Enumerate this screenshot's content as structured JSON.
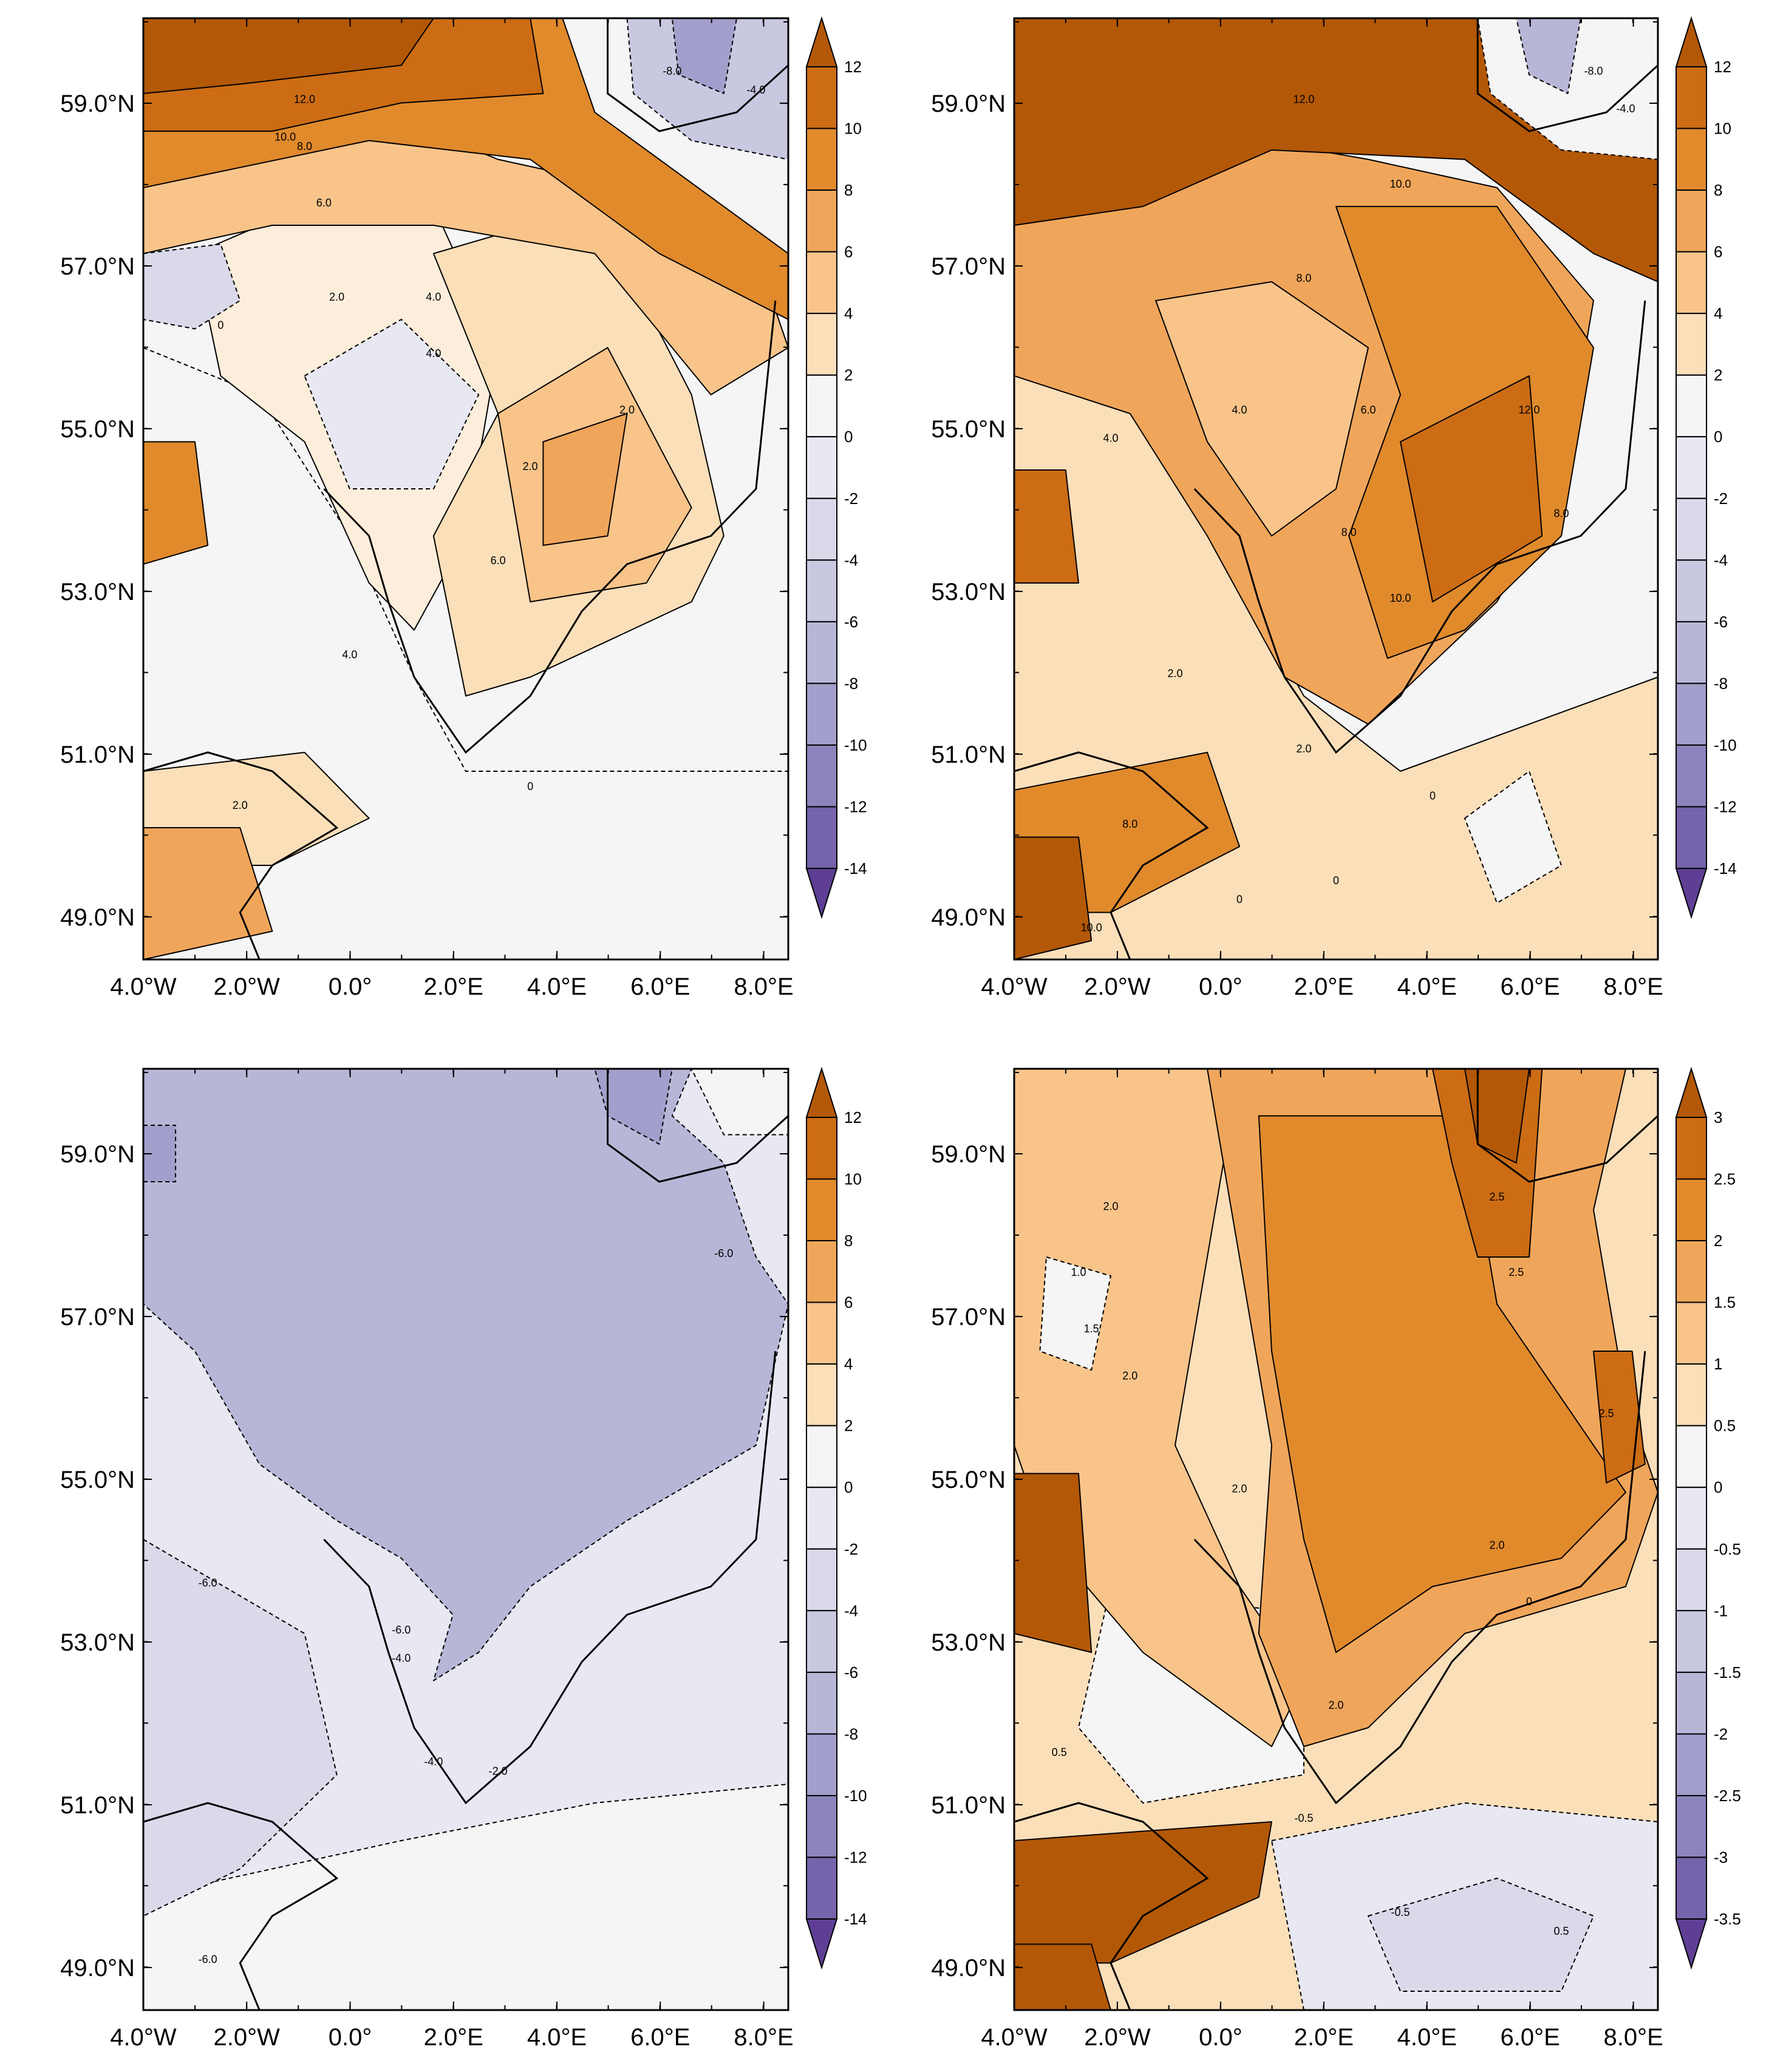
{
  "figure": {
    "description_hint": "Four-panel map figure of the North Sea region",
    "panels": [
      {
        "id": "top-left",
        "x_ticks": [
          "4.0°W",
          "2.0°W",
          "0.0°",
          "2.0°E",
          "4.0°E",
          "6.0°E",
          "8.0°E"
        ],
        "y_ticks": [
          "59.0°N",
          "57.0°N",
          "55.0°N",
          "53.0°N",
          "51.0°N",
          "49.0°N"
        ],
        "contour_labels": [
          "12.0",
          "10.0",
          "8.0",
          "6.0",
          "4.0",
          "2.0",
          "2.0",
          "4.0",
          "6.0",
          "4.0",
          "2.0",
          "0",
          "0",
          "-8.0",
          "-4.0",
          "2.0"
        ],
        "colorbar": {
          "labels": [
            "12",
            "10",
            "8",
            "6",
            "4",
            "2",
            "0",
            "-2",
            "-4",
            "-6",
            "-8",
            "-10",
            "-12",
            "-14"
          ]
        }
      },
      {
        "id": "top-right",
        "x_ticks": [
          "4.0°W",
          "2.0°W",
          "0.0°",
          "2.0°E",
          "4.0°E",
          "6.0°E",
          "8.0°E"
        ],
        "y_ticks": [
          "59.0°N",
          "57.0°N",
          "55.0°N",
          "53.0°N",
          "51.0°N",
          "49.0°N"
        ],
        "contour_labels": [
          "12.0",
          "10.0",
          "8.0",
          "6.0",
          "4.0",
          "12.0",
          "8.0",
          "10.0",
          "8.0",
          "4.0",
          "2.0",
          "2.0",
          "0",
          "0",
          "8.0",
          "10.0",
          "-8.0",
          "-4.0",
          "0"
        ],
        "colorbar": {
          "labels": [
            "12",
            "10",
            "8",
            "6",
            "4",
            "2",
            "0",
            "-2",
            "-4",
            "-6",
            "-8",
            "-10",
            "-12",
            "-14"
          ]
        }
      },
      {
        "id": "bottom-left",
        "x_ticks": [
          "4.0°W",
          "2.0°W",
          "0.0°",
          "2.0°E",
          "4.0°E",
          "6.0°E",
          "8.0°E"
        ],
        "y_ticks": [
          "59.0°N",
          "57.0°N",
          "55.0°N",
          "53.0°N",
          "51.0°N",
          "49.0°N"
        ],
        "contour_labels": [
          "-6.0",
          "-6.0",
          "-6.0",
          "-4.0",
          "-4.0",
          "-2.0",
          "-6.0"
        ],
        "colorbar": {
          "labels": [
            "12",
            "10",
            "8",
            "6",
            "4",
            "2",
            "0",
            "-2",
            "-4",
            "-6",
            "-8",
            "-10",
            "-12",
            "-14"
          ]
        }
      },
      {
        "id": "bottom-right",
        "x_ticks": [
          "4.0°W",
          "2.0°W",
          "0.0°",
          "2.0°E",
          "4.0°E",
          "6.0°E",
          "8.0°E"
        ],
        "y_ticks": [
          "59.0°N",
          "57.0°N",
          "55.0°N",
          "53.0°N",
          "51.0°N",
          "49.0°N"
        ],
        "contour_labels": [
          "2.5",
          "2.0",
          "1.0",
          "1.5",
          "2.0",
          "2.0",
          "2.5",
          "2.0",
          "2.0",
          "0",
          "-0.5",
          "0.5",
          "-0.5",
          "2.5",
          "0.5"
        ],
        "colorbar": {
          "labels": [
            "3",
            "2.5",
            "2",
            "1.5",
            "1",
            "0.5",
            "0",
            "-0.5",
            "-1",
            "-1.5",
            "-2",
            "-2.5",
            "-3",
            "-3.5"
          ]
        }
      }
    ]
  },
  "palette": {
    "brown_levels": [
      "#b35806",
      "#cc6c14",
      "#e08a2c",
      "#f0a65a",
      "#f8c48a",
      "#fbdfb9",
      "#fdeedb"
    ],
    "neutral": "#f5f5f5",
    "purple_levels": [
      "#e8e8f2",
      "#d9d9ea",
      "#c9c8e1",
      "#b8b6d7",
      "#a39fcc",
      "#8c84bd",
      "#7563ab",
      "#5e3f95"
    ],
    "land_stroke": "#000000"
  }
}
